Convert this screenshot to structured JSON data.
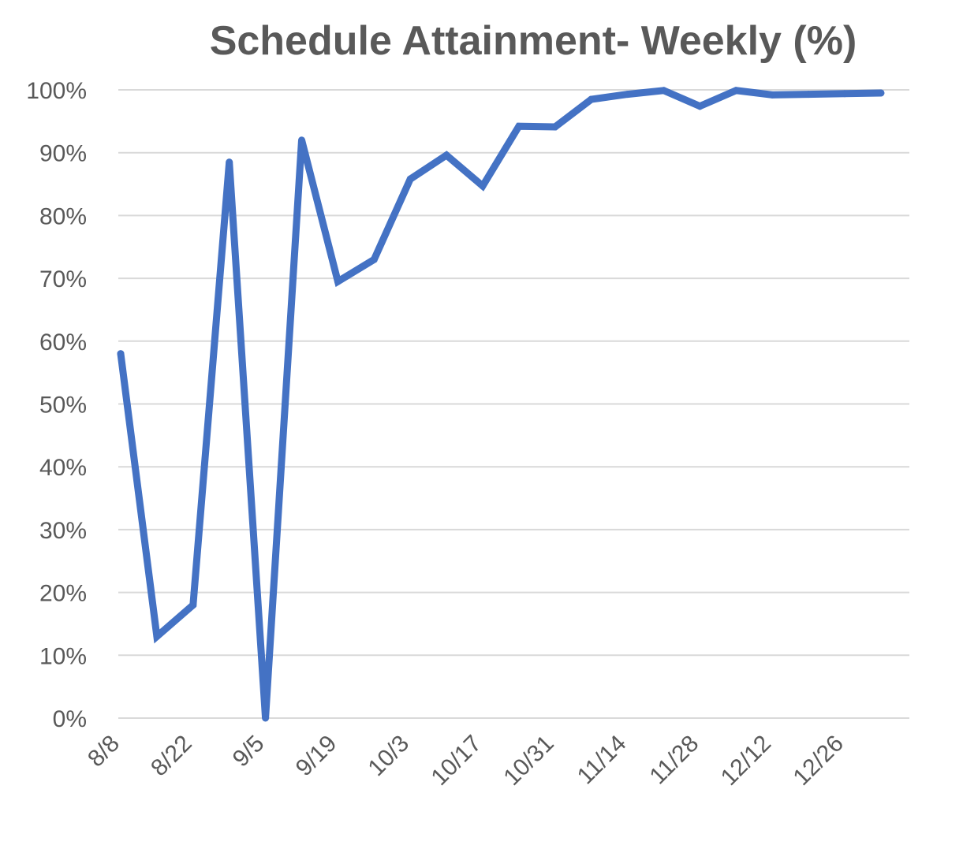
{
  "chart_data": {
    "type": "line",
    "title": "Schedule Attainment- Weekly (%)",
    "xlabel": "",
    "ylabel": "",
    "ylim": [
      0,
      100
    ],
    "yticks": [
      0,
      10,
      20,
      30,
      40,
      50,
      60,
      70,
      80,
      90,
      100
    ],
    "ytick_labels": [
      "0%",
      "10%",
      "20%",
      "30%",
      "40%",
      "50%",
      "60%",
      "70%",
      "80%",
      "90%",
      "100%"
    ],
    "x_dates": [
      "8/8",
      "8/15",
      "8/22",
      "8/29",
      "9/5",
      "9/12",
      "9/19",
      "9/26",
      "10/3",
      "10/10",
      "10/17",
      "10/24",
      "10/31",
      "11/7",
      "11/14",
      "11/21",
      "11/28",
      "12/5",
      "12/12",
      "12/19",
      "12/26",
      "1/2"
    ],
    "xtick_labels": [
      "8/8",
      "8/22",
      "9/5",
      "9/19",
      "10/3",
      "10/17",
      "10/31",
      "11/14",
      "11/28",
      "12/12",
      "12/26"
    ],
    "grid": true,
    "legend": "none",
    "series": [
      {
        "color": "#4472c4",
        "values": [
          58,
          13,
          18,
          88.5,
          0,
          92,
          69.5,
          73,
          85.8,
          89.6,
          84.7,
          94.2,
          94.1,
          98.5,
          99.3,
          99.9,
          97.4,
          99.9,
          99.2,
          99.3,
          99.4,
          99.5
        ]
      }
    ]
  }
}
